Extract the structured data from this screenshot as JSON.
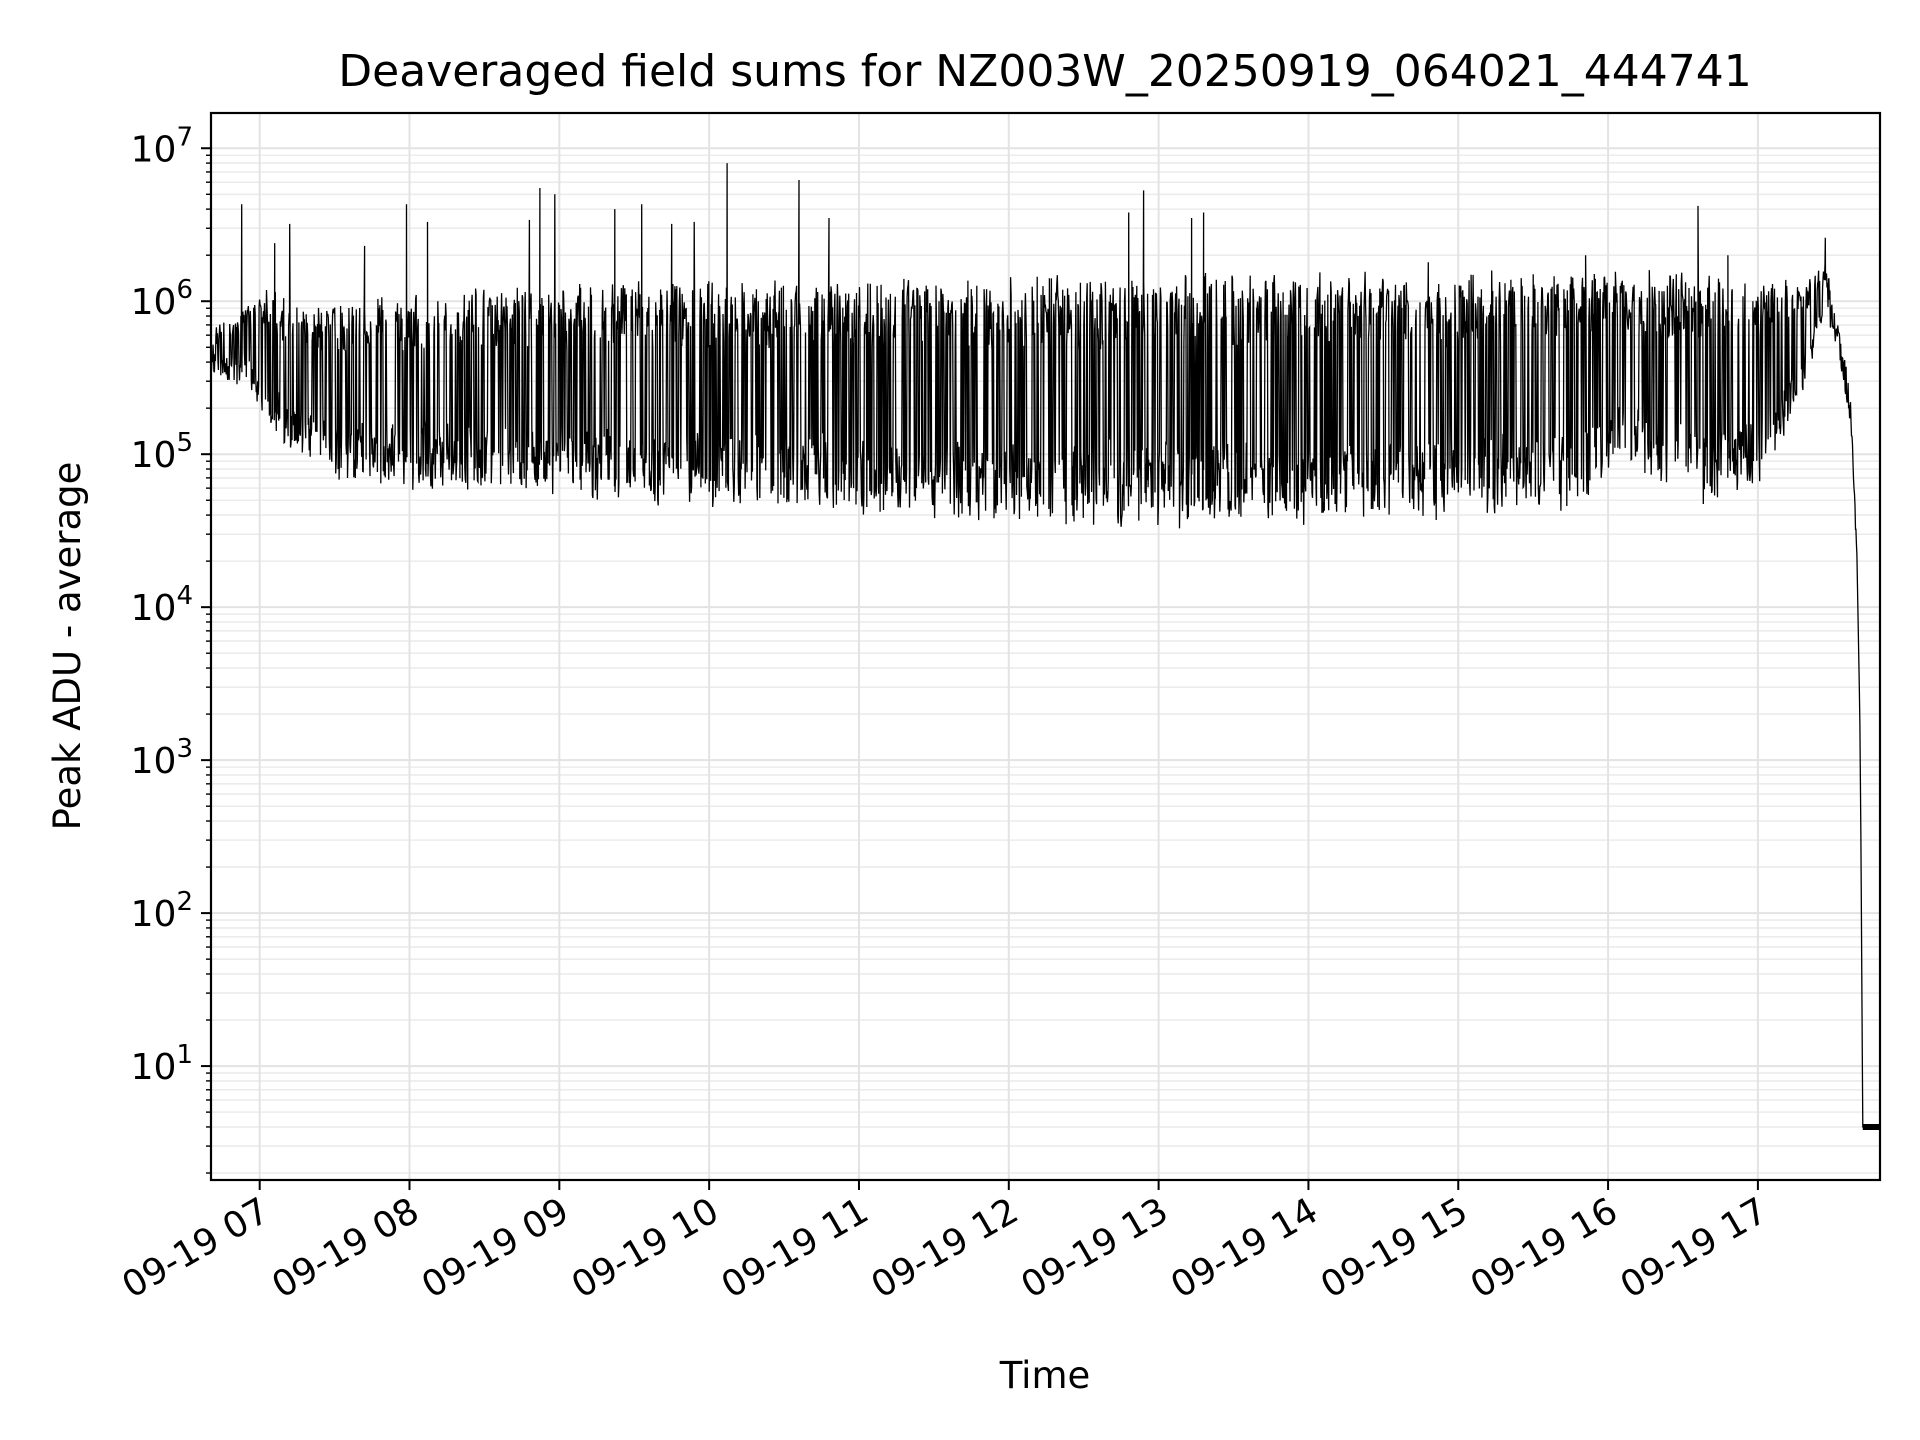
{
  "chart_data": {
    "type": "line",
    "title": "Deaveraged field sums for NZ003W_20250919_064021_444741",
    "xlabel": "Time",
    "ylabel": "Peak ADU - average",
    "yscale": "log",
    "ylim": [
      1.8,
      17000000
    ],
    "xlim_hours": [
      6.675,
      17.815
    ],
    "grid": "on (major and minor, light gray)",
    "line_color": "#000000",
    "x_ticks": [
      {
        "hour": 7,
        "label": "09-19 07"
      },
      {
        "hour": 8,
        "label": "09-19 08"
      },
      {
        "hour": 9,
        "label": "09-19 09"
      },
      {
        "hour": 10,
        "label": "09-19 10"
      },
      {
        "hour": 11,
        "label": "09-19 11"
      },
      {
        "hour": 12,
        "label": "09-19 12"
      },
      {
        "hour": 13,
        "label": "09-19 13"
      },
      {
        "hour": 14,
        "label": "09-19 14"
      },
      {
        "hour": 15,
        "label": "09-19 15"
      },
      {
        "hour": 16,
        "label": "09-19 16"
      },
      {
        "hour": 17,
        "label": "09-19 17"
      }
    ],
    "y_ticks": [
      {
        "value": 10,
        "base": "10",
        "exp": "1"
      },
      {
        "value": 100,
        "base": "10",
        "exp": "2"
      },
      {
        "value": 1000,
        "base": "10",
        "exp": "3"
      },
      {
        "value": 10000,
        "base": "10",
        "exp": "4"
      },
      {
        "value": 100000,
        "base": "10",
        "exp": "5"
      },
      {
        "value": 1000000,
        "base": "10",
        "exp": "6"
      },
      {
        "value": 10000000,
        "base": "10",
        "exp": "7"
      }
    ],
    "series": [
      {
        "name": "Peak ADU - average",
        "description": "rapidly oscillating signal between a lower envelope and an upper envelope; points listed as [hour, value]",
        "lower_envelope": [
          [
            6.675,
            350000
          ],
          [
            6.9,
            300000
          ],
          [
            7.0,
            200000
          ],
          [
            7.1,
            150000
          ],
          [
            7.3,
            90000
          ],
          [
            7.6,
            70000
          ],
          [
            8.0,
            65000
          ],
          [
            8.5,
            60000
          ],
          [
            9.0,
            55000
          ],
          [
            9.5,
            52000
          ],
          [
            10.0,
            50000
          ],
          [
            10.5,
            47000
          ],
          [
            11.0,
            45000
          ],
          [
            11.5,
            40000
          ],
          [
            12.0,
            38000
          ],
          [
            13.0,
            37000
          ],
          [
            14.0,
            38000
          ],
          [
            15.0,
            42000
          ],
          [
            15.8,
            48000
          ],
          [
            16.1,
            100000
          ],
          [
            16.4,
            55000
          ],
          [
            16.8,
            55000
          ],
          [
            17.0,
            70000
          ],
          [
            17.3,
            250000
          ],
          [
            17.45,
            900000
          ],
          [
            17.53,
            550000
          ],
          [
            17.58,
            300000
          ],
          [
            17.62,
            150000
          ],
          [
            17.66,
            25000
          ],
          [
            17.68,
            2000
          ],
          [
            17.69,
            150
          ],
          [
            17.7,
            4
          ],
          [
            17.815,
            4
          ]
        ],
        "upper_envelope": [
          [
            6.675,
            600000
          ],
          [
            6.9,
            900000
          ],
          [
            7.0,
            1100000
          ],
          [
            7.2,
            1000000
          ],
          [
            7.5,
            900000
          ],
          [
            8.0,
            1000000
          ],
          [
            8.5,
            1100000
          ],
          [
            9.0,
            1150000
          ],
          [
            9.5,
            1200000
          ],
          [
            10.0,
            1250000
          ],
          [
            10.5,
            1250000
          ],
          [
            11.0,
            1250000
          ],
          [
            11.3,
            1300000
          ],
          [
            12.0,
            1300000
          ],
          [
            13.0,
            1350000
          ],
          [
            14.0,
            1400000
          ],
          [
            15.0,
            1400000
          ],
          [
            16.0,
            1400000
          ],
          [
            16.6,
            1400000
          ],
          [
            17.3,
            1300000
          ],
          [
            17.45,
            1600000
          ],
          [
            17.53,
            700000
          ],
          [
            17.58,
            400000
          ],
          [
            17.62,
            200000
          ],
          [
            17.66,
            25000
          ],
          [
            17.68,
            2000
          ],
          [
            17.69,
            150
          ],
          [
            17.7,
            4
          ],
          [
            17.815,
            4
          ]
        ],
        "spikes": [
          [
            6.88,
            4300000
          ],
          [
            7.1,
            2400000
          ],
          [
            7.2,
            3200000
          ],
          [
            7.7,
            2300000
          ],
          [
            7.98,
            4300000
          ],
          [
            8.12,
            3300000
          ],
          [
            8.8,
            3400000
          ],
          [
            8.87,
            5500000
          ],
          [
            8.97,
            5000000
          ],
          [
            9.37,
            4000000
          ],
          [
            9.55,
            4300000
          ],
          [
            9.75,
            3200000
          ],
          [
            9.9,
            3300000
          ],
          [
            10.12,
            8000000
          ],
          [
            10.6,
            6200000
          ],
          [
            10.8,
            3500000
          ],
          [
            11.3,
            1400000
          ],
          [
            11.75,
            1200000
          ],
          [
            12.4,
            1100000
          ],
          [
            12.8,
            3800000
          ],
          [
            12.9,
            5300000
          ],
          [
            13.22,
            3500000
          ],
          [
            13.3,
            3800000
          ],
          [
            14.8,
            1800000
          ],
          [
            15.5,
            1500000
          ],
          [
            15.85,
            2000000
          ],
          [
            16.6,
            4200000
          ],
          [
            16.8,
            2000000
          ],
          [
            17.45,
            2600000
          ]
        ]
      }
    ]
  }
}
